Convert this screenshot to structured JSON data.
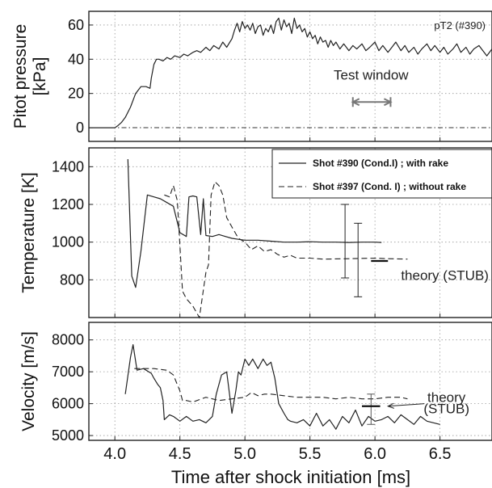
{
  "x_axis": {
    "label": "Time after shock initiation [ms]",
    "range": [
      3.8,
      6.9
    ],
    "ticks": [
      4.0,
      4.5,
      5.0,
      5.5,
      6.0,
      6.5
    ],
    "tick_labels": [
      "4.0",
      "4.5",
      "5.0",
      "5.5",
      "6.0",
      "6.5"
    ]
  },
  "chart_data": [
    {
      "type": "line",
      "ylabel": "Pitot pressure\n[kPa]",
      "ylim": [
        -8,
        68
      ],
      "yticks": [
        0,
        20,
        40,
        60
      ],
      "grid": true,
      "series_label": "pT2 (#390)",
      "series": [
        {
          "name": "pT2 (#390)",
          "style": "solid",
          "x": [
            3.8,
            3.95,
            3.98,
            4.0,
            4.02,
            4.05,
            4.08,
            4.12,
            4.16,
            4.2,
            4.24,
            4.27,
            4.28,
            4.3,
            4.32,
            4.34,
            4.37,
            4.4,
            4.43,
            4.46,
            4.5,
            4.53,
            4.56,
            4.6,
            4.63,
            4.66,
            4.7,
            4.73,
            4.76,
            4.8,
            4.83,
            4.86,
            4.9,
            4.92,
            4.94,
            4.96,
            4.98,
            5.0,
            5.02,
            5.04,
            5.06,
            5.08,
            5.1,
            5.12,
            5.14,
            5.16,
            5.18,
            5.2,
            5.22,
            5.24,
            5.26,
            5.28,
            5.3,
            5.32,
            5.34,
            5.36,
            5.38,
            5.4,
            5.42,
            5.44,
            5.46,
            5.48,
            5.5,
            5.52,
            5.54,
            5.56,
            5.58,
            5.6,
            5.62,
            5.64,
            5.66,
            5.68,
            5.7,
            5.73,
            5.76,
            5.8,
            5.83,
            5.86,
            5.9,
            5.93,
            5.96,
            6.0,
            6.03,
            6.06,
            6.1,
            6.13,
            6.16,
            6.2,
            6.23,
            6.26,
            6.3,
            6.33,
            6.36,
            6.4,
            6.43,
            6.46,
            6.5,
            6.53,
            6.56,
            6.6,
            6.63,
            6.66,
            6.7,
            6.73,
            6.76,
            6.8,
            6.83,
            6.86,
            6.9
          ],
          "y": [
            0,
            0,
            0,
            0,
            1,
            3,
            6,
            12,
            20,
            24,
            24,
            23,
            29,
            37,
            40,
            40,
            39,
            41,
            40,
            42,
            41,
            43,
            42,
            44,
            45,
            44,
            47,
            45,
            48,
            46,
            50,
            47,
            52,
            57,
            61,
            56,
            62,
            58,
            60,
            57,
            61,
            55,
            59,
            60,
            54,
            58,
            56,
            60,
            55,
            62,
            64,
            57,
            63,
            59,
            61,
            55,
            64,
            58,
            60,
            56,
            58,
            53,
            56,
            52,
            54,
            49,
            53,
            50,
            51,
            47,
            51,
            48,
            50,
            46,
            49,
            45,
            48,
            46,
            49,
            45,
            47,
            50,
            45,
            48,
            44,
            47,
            50,
            45,
            48,
            44,
            47,
            43,
            46,
            49,
            45,
            48,
            44,
            47,
            43,
            46,
            49,
            44,
            47,
            43,
            46,
            48,
            45,
            42,
            46
          ]
        }
      ],
      "reference_lines": [
        {
          "y": 0,
          "style": "dash-dot"
        }
      ],
      "annotations": [
        {
          "text": "Test window",
          "x": 5.97,
          "y": 28
        },
        {
          "type": "double-arrow",
          "x": [
            5.83,
            6.12
          ],
          "y": 15
        }
      ]
    },
    {
      "type": "line",
      "ylabel": "Temperature [K]",
      "ylim": [
        600,
        1500
      ],
      "yticks": [
        800,
        1000,
        1200,
        1400
      ],
      "grid": true,
      "legend_position": "top-right",
      "series": [
        {
          "name": "Shot #390 (Cond.I) ; with rake",
          "style": "solid",
          "x": [
            4.1,
            4.13,
            4.16,
            4.2,
            4.25,
            4.3,
            4.35,
            4.4,
            4.45,
            4.5,
            4.55,
            4.57,
            4.6,
            4.63,
            4.66,
            4.68,
            4.7,
            4.75,
            4.8,
            4.85,
            4.9,
            4.95,
            5.0,
            5.1,
            5.2,
            5.3,
            5.4,
            5.5,
            5.6,
            5.7,
            5.8,
            5.9,
            6.0,
            6.05
          ],
          "y": [
            1440,
            820,
            760,
            950,
            1250,
            1240,
            1230,
            1210,
            1190,
            1050,
            1030,
            1240,
            1245,
            1240,
            1040,
            1230,
            1035,
            1030,
            1040,
            1030,
            1020,
            1015,
            1010,
            1010,
            1005,
            1000,
            1000,
            1002,
            1000,
            1000,
            998,
            1000,
            1000,
            998
          ]
        },
        {
          "name": "Shot #397 (Cond. I) ; without rake",
          "style": "dashed",
          "x": [
            4.38,
            4.42,
            4.45,
            4.48,
            4.52,
            4.55,
            4.6,
            4.65,
            4.7,
            4.72,
            4.74,
            4.77,
            4.8,
            4.83,
            4.86,
            4.9,
            4.95,
            5.0,
            5.05,
            5.1,
            5.15,
            5.2,
            5.25,
            5.3,
            5.35,
            5.4,
            5.5,
            5.6,
            5.8,
            6.0,
            6.1,
            6.25
          ],
          "y": [
            1250,
            1240,
            1300,
            1220,
            740,
            700,
            660,
            600,
            840,
            880,
            1250,
            1320,
            1300,
            1250,
            1130,
            1080,
            1020,
            1000,
            960,
            980,
            950,
            960,
            935,
            920,
            930,
            915,
            915,
            910,
            912,
            915,
            912,
            910
          ]
        }
      ],
      "error_bars": [
        {
          "x": 5.77,
          "low": 810,
          "high": 1200
        },
        {
          "x": 5.87,
          "low": 710,
          "high": 1100
        }
      ],
      "theory_marks": [
        {
          "x": [
            5.97,
            6.1
          ],
          "y": 900
        }
      ],
      "annotations": [
        {
          "text": "theory (STUB)",
          "x": 6.2,
          "y": 800
        }
      ]
    },
    {
      "type": "line",
      "ylabel": "Velocity [m/s]",
      "ylim": [
        4850,
        8550
      ],
      "yticks": [
        5000,
        6000,
        7000,
        8000
      ],
      "grid": true,
      "series": [
        {
          "name": "Shot #390 (Cond.I) ; with rake",
          "style": "solid",
          "x": [
            4.08,
            4.12,
            4.14,
            4.17,
            4.22,
            4.28,
            4.3,
            4.33,
            4.35,
            4.37,
            4.38,
            4.42,
            4.45,
            4.5,
            4.55,
            4.6,
            4.65,
            4.7,
            4.75,
            4.78,
            4.82,
            4.86,
            4.9,
            4.93,
            4.95,
            4.97,
            5.0,
            5.03,
            5.06,
            5.1,
            5.14,
            5.17,
            5.2,
            5.23,
            5.26,
            5.3,
            5.33,
            5.35,
            5.4,
            5.45,
            5.5,
            5.55,
            5.6,
            5.65,
            5.7,
            5.75,
            5.8,
            5.85,
            5.9,
            5.95,
            6.0,
            6.05,
            6.1,
            6.15,
            6.2,
            6.25,
            6.3,
            6.35,
            6.4,
            6.45,
            6.5
          ],
          "y": [
            6300,
            7450,
            7850,
            7050,
            7100,
            6950,
            6800,
            6600,
            6500,
            6100,
            5500,
            5650,
            5600,
            5450,
            5600,
            5450,
            5500,
            5400,
            5600,
            6300,
            6900,
            7000,
            5700,
            6400,
            7000,
            6900,
            7400,
            7200,
            7400,
            7100,
            7400,
            7200,
            7300,
            6800,
            6000,
            5700,
            5500,
            5450,
            5400,
            5500,
            5300,
            5700,
            5300,
            5500,
            5200,
            5600,
            5400,
            5800,
            5300,
            5600,
            5450,
            5500,
            5600,
            5400,
            5650,
            5500,
            5350,
            5600,
            5450,
            5400,
            5350
          ]
        },
        {
          "name": "Shot #397 (Cond. I) ; without rake",
          "style": "dashed",
          "x": [
            4.15,
            4.2,
            4.3,
            4.4,
            4.45,
            4.5,
            4.52,
            4.55,
            4.6,
            4.7,
            4.8,
            4.9,
            5.0,
            5.05,
            5.1,
            5.15,
            5.2,
            5.3,
            5.4,
            5.5,
            5.6,
            5.7,
            5.8,
            5.9,
            6.0,
            6.1,
            6.2,
            6.25
          ],
          "y": [
            7100,
            7100,
            7100,
            7050,
            6900,
            6400,
            6100,
            6100,
            6050,
            6200,
            6100,
            6150,
            6200,
            6350,
            6250,
            6300,
            6300,
            6250,
            6200,
            6200,
            6200,
            6150,
            6200,
            6150,
            6150,
            6200,
            6200,
            6150
          ]
        }
      ],
      "error_bars": [
        {
          "x": 5.97,
          "low": 5350,
          "high": 6300
        }
      ],
      "theory_marks": [
        {
          "x": [
            5.9,
            6.04
          ],
          "y": 5920
        }
      ],
      "annotations": [
        {
          "text": "theory",
          "x": 6.55,
          "y": 6050
        },
        {
          "text": "(STUB)",
          "x": 6.55,
          "y": 5700
        },
        {
          "type": "arrow",
          "from": [
            6.38,
            6000
          ],
          "to": [
            6.1,
            5920
          ]
        }
      ]
    }
  ]
}
